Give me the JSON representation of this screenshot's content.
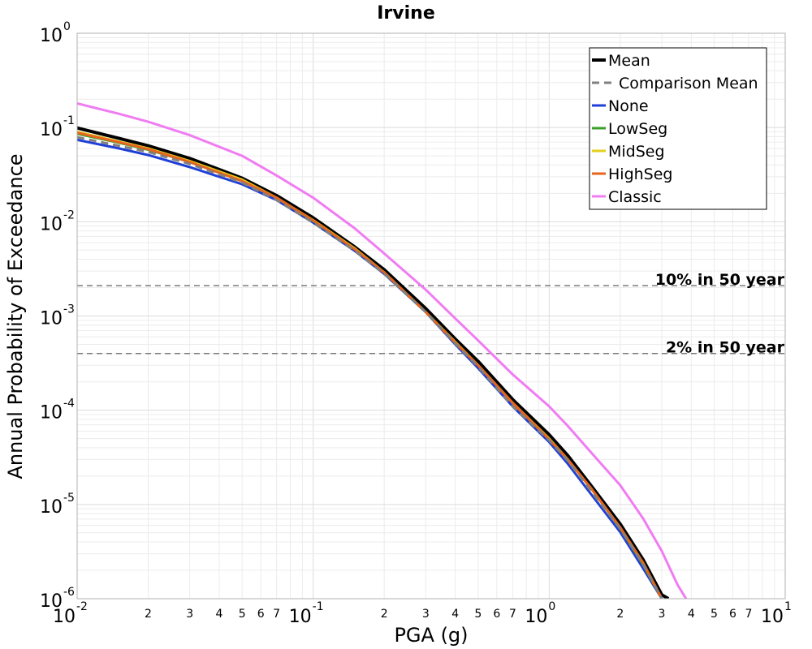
{
  "chart_data": {
    "type": "line",
    "title": "Irvine",
    "xlabel": "PGA (g)",
    "ylabel": "Annual Probability of Exceedance",
    "xscale": "log",
    "yscale": "log",
    "xlim": [
      0.01,
      10
    ],
    "ylim": [
      1e-06,
      1
    ],
    "grid": true,
    "legend_position": "top-right",
    "x_major_ticks": [
      {
        "mant": "10",
        "exp": "-2"
      },
      {
        "mant": "10",
        "exp": "-1"
      },
      {
        "mant": "10",
        "exp": "0"
      },
      {
        "mant": "10",
        "exp": "1"
      }
    ],
    "y_major_ticks": [
      {
        "mant": "10",
        "exp": "0"
      },
      {
        "mant": "10",
        "exp": "-1"
      },
      {
        "mant": "10",
        "exp": "-2"
      },
      {
        "mant": "10",
        "exp": "-3"
      },
      {
        "mant": "10",
        "exp": "-4"
      },
      {
        "mant": "10",
        "exp": "-5"
      },
      {
        "mant": "10",
        "exp": "-6"
      }
    ],
    "x_minor_tick_labels": [
      "2",
      "3",
      "4",
      "5",
      "6",
      "7"
    ],
    "reference_lines": [
      {
        "label": "10% in 50 year",
        "y": 0.0021
      },
      {
        "label": "2% in 50 year",
        "y": 0.0004
      }
    ],
    "series": [
      {
        "name": "Mean",
        "color": "#000000",
        "style": "solid",
        "width": 4,
        "x": [
          0.01,
          0.015,
          0.02,
          0.03,
          0.05,
          0.07,
          0.1,
          0.15,
          0.2,
          0.3,
          0.4,
          0.5,
          0.7,
          1.0,
          1.2,
          1.5,
          2.0,
          2.5,
          3.0,
          3.2
        ],
        "y": [
          0.099,
          0.077,
          0.064,
          0.047,
          0.029,
          0.019,
          0.011,
          0.0054,
          0.0031,
          0.0012,
          0.00057,
          0.00033,
          0.00013,
          5.5e-05,
          3.3e-05,
          1.6e-05,
          6.2e-06,
          2.6e-06,
          1.1e-06,
          1e-06
        ]
      },
      {
        "name": "Comparison Mean",
        "color": "#808080",
        "style": "dashed",
        "width": 3,
        "x": [
          0.01,
          0.015,
          0.02,
          0.03,
          0.05,
          0.07,
          0.1,
          0.15,
          0.2,
          0.3,
          0.4,
          0.5,
          0.7,
          1.0,
          1.2,
          1.5,
          2.0,
          2.5,
          3.0,
          3.1
        ],
        "y": [
          0.079,
          0.064,
          0.055,
          0.041,
          0.026,
          0.017,
          0.0098,
          0.0049,
          0.0028,
          0.0011,
          0.00051,
          0.00029,
          0.00011,
          4.8e-05,
          2.9e-05,
          1.4e-05,
          5.5e-06,
          2.3e-06,
          1e-06,
          8e-07
        ]
      },
      {
        "name": "None",
        "color": "#1f3fd6",
        "style": "solid",
        "width": 3,
        "x": [
          0.01,
          0.015,
          0.02,
          0.03,
          0.05,
          0.07,
          0.1,
          0.15,
          0.2,
          0.3,
          0.4,
          0.5,
          0.7,
          1.0,
          1.2,
          1.5,
          2.0,
          2.5,
          3.0,
          3.1
        ],
        "y": [
          0.074,
          0.06,
          0.051,
          0.038,
          0.025,
          0.017,
          0.0098,
          0.0049,
          0.0028,
          0.0011,
          0.0005,
          0.00028,
          0.00011,
          4.6e-05,
          2.7e-05,
          1.3e-05,
          5.1e-06,
          2.1e-06,
          1e-06,
          8.5e-07
        ]
      },
      {
        "name": "LowSeg",
        "color": "#3aa02a",
        "style": "solid",
        "width": 3,
        "x": [
          0.01,
          0.015,
          0.02,
          0.03,
          0.05,
          0.07,
          0.1,
          0.15,
          0.2,
          0.3,
          0.4,
          0.5,
          0.7,
          1.0,
          1.2,
          1.5,
          2.0,
          2.5,
          3.0,
          3.1
        ],
        "y": [
          0.086,
          0.069,
          0.058,
          0.043,
          0.027,
          0.018,
          0.0102,
          0.0051,
          0.0029,
          0.0011,
          0.00052,
          0.0003,
          0.00012,
          4.9e-05,
          3e-05,
          1.5e-05,
          5.6e-06,
          2.3e-06,
          1e-06,
          8.5e-07
        ]
      },
      {
        "name": "MidSeg",
        "color": "#e6cf1c",
        "style": "solid",
        "width": 3,
        "x": [
          0.01,
          0.015,
          0.02,
          0.03,
          0.05,
          0.07,
          0.1,
          0.15,
          0.2,
          0.3,
          0.4,
          0.5,
          0.7,
          1.0,
          1.2,
          1.5,
          2.0,
          2.5,
          3.0,
          3.1
        ],
        "y": [
          0.09,
          0.071,
          0.06,
          0.044,
          0.028,
          0.018,
          0.0104,
          0.0052,
          0.0029,
          0.0011,
          0.00053,
          0.0003,
          0.00012,
          5e-05,
          3e-05,
          1.5e-05,
          5.7e-06,
          2.4e-06,
          1e-06,
          8.5e-07
        ]
      },
      {
        "name": "HighSeg",
        "color": "#e8641e",
        "style": "solid",
        "width": 3,
        "x": [
          0.01,
          0.015,
          0.02,
          0.03,
          0.05,
          0.07,
          0.1,
          0.15,
          0.2,
          0.3,
          0.4,
          0.5,
          0.7,
          1.0,
          1.2,
          1.5,
          2.0,
          2.5,
          3.0,
          3.1
        ],
        "y": [
          0.088,
          0.07,
          0.059,
          0.043,
          0.027,
          0.018,
          0.0103,
          0.0051,
          0.0029,
          0.0011,
          0.00052,
          0.0003,
          0.00012,
          4.9e-05,
          3e-05,
          1.5e-05,
          5.7e-06,
          2.4e-06,
          1e-06,
          8.5e-07
        ]
      },
      {
        "name": "Classic",
        "color": "#f07cf2",
        "style": "solid",
        "width": 3,
        "x": [
          0.01,
          0.015,
          0.02,
          0.03,
          0.05,
          0.07,
          0.1,
          0.15,
          0.2,
          0.3,
          0.4,
          0.5,
          0.7,
          1.0,
          1.2,
          1.5,
          2.0,
          2.5,
          3.0,
          3.5,
          3.8
        ],
        "y": [
          0.18,
          0.14,
          0.115,
          0.083,
          0.05,
          0.031,
          0.018,
          0.0085,
          0.0046,
          0.0019,
          0.00094,
          0.00055,
          0.00024,
          0.00011,
          6.8e-05,
          3.6e-05,
          1.6e-05,
          7.1e-06,
          3.2e-06,
          1.4e-06,
          1e-06
        ]
      }
    ]
  }
}
